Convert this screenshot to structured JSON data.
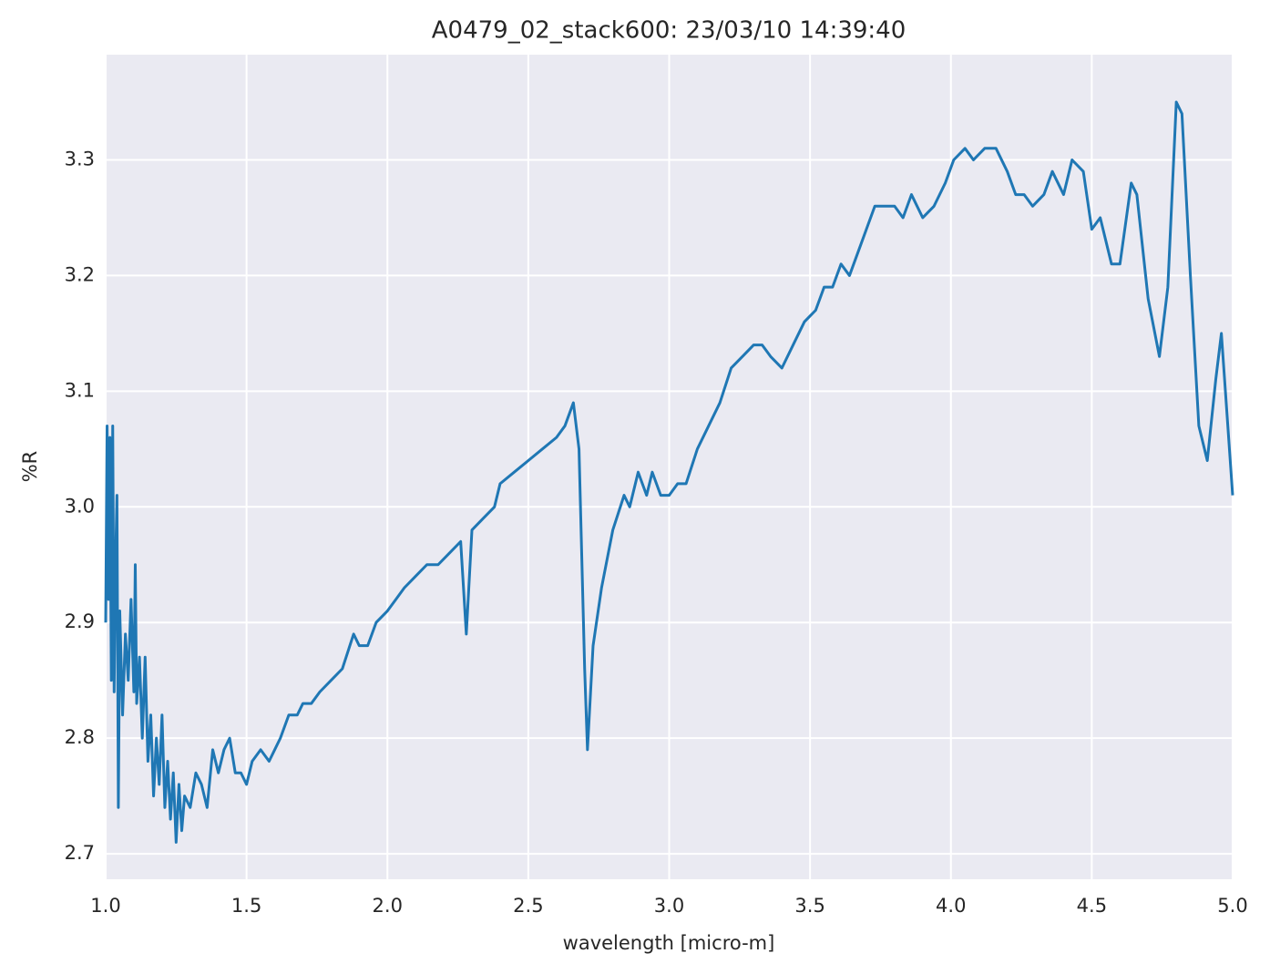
{
  "chart_data": {
    "type": "line",
    "title": "A0479_02_stack600:  23/03/10 14:39:40",
    "x_label": "wavelength [micro-m]",
    "y_label": "%R",
    "xlim": [
      1,
      5
    ],
    "ylim": [
      2.678,
      3.391
    ],
    "xticks": [
      {
        "value": 1,
        "label": "1.0"
      },
      1.5,
      {
        "value": 2,
        "label": "2.0"
      },
      2.5,
      {
        "value": 3,
        "label": "3.0"
      },
      3.5,
      {
        "value": 4,
        "label": "4.0"
      },
      4.5,
      {
        "value": 5,
        "label": "5.0"
      }
    ],
    "yticks": [
      2.7,
      2.8,
      2.9,
      {
        "value": 3,
        "label": "3.0"
      },
      3.1,
      3.2,
      3.3
    ],
    "grid": true,
    "background": "#eaeaf2",
    "x": [
      1.0,
      1.005,
      1.01,
      1.015,
      1.02,
      1.025,
      1.03,
      1.035,
      1.04,
      1.045,
      1.05,
      1.06,
      1.07,
      1.08,
      1.09,
      1.1,
      1.105,
      1.11,
      1.12,
      1.13,
      1.14,
      1.15,
      1.16,
      1.17,
      1.18,
      1.19,
      1.2,
      1.21,
      1.22,
      1.23,
      1.24,
      1.25,
      1.26,
      1.27,
      1.28,
      1.3,
      1.32,
      1.34,
      1.36,
      1.38,
      1.4,
      1.42,
      1.44,
      1.46,
      1.48,
      1.5,
      1.52,
      1.55,
      1.58,
      1.6,
      1.62,
      1.65,
      1.68,
      1.7,
      1.73,
      1.76,
      1.8,
      1.84,
      1.88,
      1.9,
      1.93,
      1.96,
      2.0,
      2.03,
      2.06,
      2.1,
      2.14,
      2.18,
      2.22,
      2.26,
      2.28,
      2.3,
      2.34,
      2.38,
      2.4,
      2.45,
      2.5,
      2.55,
      2.6,
      2.63,
      2.66,
      2.68,
      2.7,
      2.71,
      2.73,
      2.76,
      2.8,
      2.84,
      2.86,
      2.89,
      2.92,
      2.94,
      2.97,
      3.0,
      3.03,
      3.06,
      3.1,
      3.14,
      3.18,
      3.22,
      3.26,
      3.3,
      3.33,
      3.36,
      3.4,
      3.44,
      3.48,
      3.52,
      3.55,
      3.58,
      3.61,
      3.64,
      3.67,
      3.7,
      3.73,
      3.77,
      3.8,
      3.83,
      3.86,
      3.9,
      3.94,
      3.98,
      4.01,
      4.05,
      4.08,
      4.12,
      4.16,
      4.2,
      4.23,
      4.26,
      4.29,
      4.33,
      4.36,
      4.4,
      4.43,
      4.47,
      4.5,
      4.53,
      4.57,
      4.6,
      4.64,
      4.66,
      4.7,
      4.74,
      4.77,
      4.8,
      4.82,
      4.85,
      4.88,
      4.91,
      4.94,
      4.96,
      4.98,
      5.0
    ],
    "series": [
      {
        "name": "%R",
        "color": "#1f77b4",
        "values": [
          2.9,
          3.07,
          2.92,
          3.06,
          2.85,
          3.07,
          2.84,
          2.95,
          3.01,
          2.74,
          2.91,
          2.82,
          2.89,
          2.85,
          2.92,
          2.84,
          2.95,
          2.83,
          2.87,
          2.8,
          2.87,
          2.78,
          2.82,
          2.75,
          2.8,
          2.76,
          2.82,
          2.74,
          2.78,
          2.73,
          2.77,
          2.71,
          2.76,
          2.72,
          2.75,
          2.74,
          2.77,
          2.76,
          2.74,
          2.79,
          2.77,
          2.79,
          2.8,
          2.77,
          2.77,
          2.76,
          2.78,
          2.79,
          2.78,
          2.79,
          2.8,
          2.82,
          2.82,
          2.83,
          2.83,
          2.84,
          2.85,
          2.86,
          2.89,
          2.88,
          2.88,
          2.9,
          2.91,
          2.92,
          2.93,
          2.94,
          2.95,
          2.95,
          2.96,
          2.97,
          2.89,
          2.98,
          2.99,
          3.0,
          3.02,
          3.03,
          3.04,
          3.05,
          3.06,
          3.07,
          3.09,
          3.05,
          2.86,
          2.79,
          2.88,
          2.93,
          2.98,
          3.01,
          3.0,
          3.03,
          3.01,
          3.03,
          3.01,
          3.01,
          3.02,
          3.02,
          3.05,
          3.07,
          3.09,
          3.12,
          3.13,
          3.14,
          3.14,
          3.13,
          3.12,
          3.14,
          3.16,
          3.17,
          3.19,
          3.19,
          3.21,
          3.2,
          3.22,
          3.24,
          3.26,
          3.26,
          3.26,
          3.25,
          3.27,
          3.25,
          3.26,
          3.28,
          3.3,
          3.31,
          3.3,
          3.31,
          3.31,
          3.29,
          3.27,
          3.27,
          3.26,
          3.27,
          3.29,
          3.27,
          3.3,
          3.29,
          3.24,
          3.25,
          3.21,
          3.21,
          3.28,
          3.27,
          3.18,
          3.13,
          3.19,
          3.35,
          3.34,
          3.2,
          3.07,
          3.04,
          3.11,
          3.15,
          3.08,
          3.01
        ]
      }
    ]
  }
}
